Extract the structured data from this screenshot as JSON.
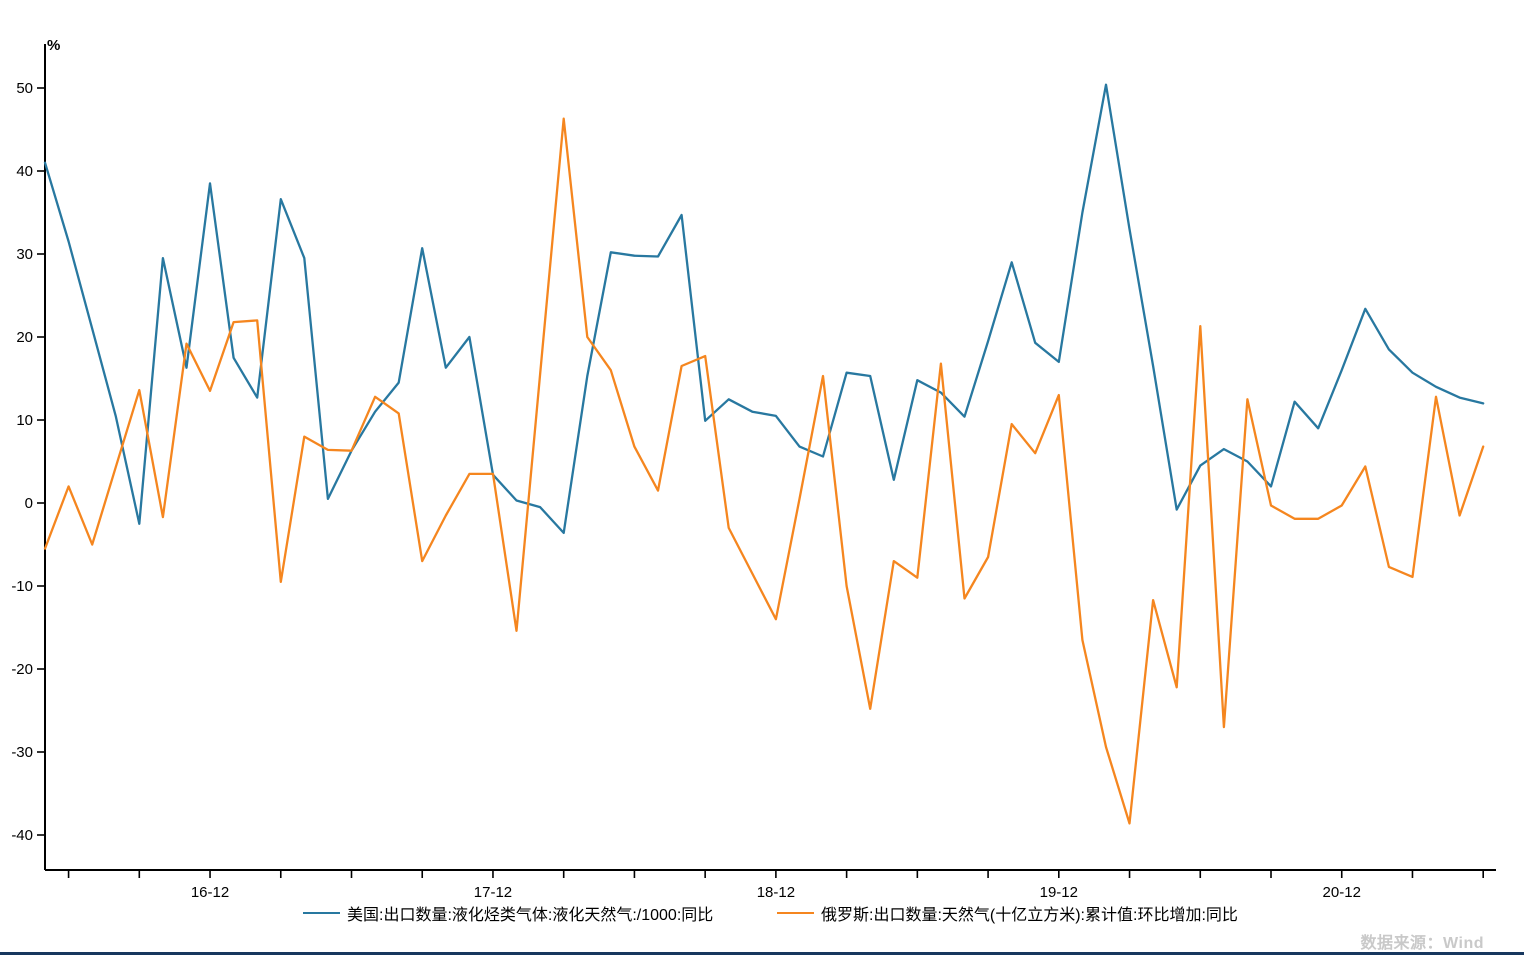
{
  "unit_label": "%",
  "source_note": "数据来源：Wind",
  "colors": {
    "us_line": "#2878A0",
    "ru_line": "#F5861F",
    "axis": "#000000",
    "tick_label": "#000000",
    "source_text": "#C9C9C9",
    "bottom_border": "#17375E"
  },
  "legend": {
    "us_label": "美国:出口数量:液化烃类气体:液化天然气:/1000:同比",
    "ru_label": "俄罗斯:出口数量:天然气(十亿立方米):累计值:环比增加:同比"
  },
  "chart_data": {
    "type": "line",
    "title": "",
    "xlabel": "",
    "ylabel": "%",
    "ylim": [
      -45,
      55
    ],
    "grid": false,
    "legend_position": "bottom",
    "y_ticks": [
      50,
      40,
      30,
      20,
      10,
      0,
      -10,
      -20,
      -30,
      -40
    ],
    "x_tick_every_months": 3,
    "x_major_ticks": [
      {
        "month_index": 7,
        "label": "16-12"
      },
      {
        "month_index": 19,
        "label": "17-12"
      },
      {
        "month_index": 31,
        "label": "18-12"
      },
      {
        "month_index": 43,
        "label": "19-12"
      },
      {
        "month_index": 55,
        "label": "20-12"
      }
    ],
    "x": [
      "2016-05",
      "2016-06",
      "2016-07",
      "2016-08",
      "2016-09",
      "2016-10",
      "2016-11",
      "2016-12",
      "2017-01",
      "2017-02",
      "2017-03",
      "2017-04",
      "2017-05",
      "2017-06",
      "2017-07",
      "2017-08",
      "2017-09",
      "2017-10",
      "2017-11",
      "2017-12",
      "2018-01",
      "2018-02",
      "2018-03",
      "2018-04",
      "2018-05",
      "2018-06",
      "2018-07",
      "2018-08",
      "2018-09",
      "2018-10",
      "2018-11",
      "2018-12",
      "2019-01",
      "2019-02",
      "2019-03",
      "2019-04",
      "2019-05",
      "2019-06",
      "2019-07",
      "2019-08",
      "2019-09",
      "2019-10",
      "2019-11",
      "2019-12",
      "2020-01",
      "2020-02",
      "2020-03",
      "2020-04",
      "2020-05",
      "2020-06",
      "2020-07",
      "2020-08",
      "2020-09",
      "2020-10",
      "2020-11",
      "2020-12",
      "2021-01",
      "2021-02",
      "2021-03",
      "2021-04",
      "2021-05",
      "2021-06"
    ],
    "series": [
      {
        "name": "美国:出口数量:液化烃类气体:液化天然气:/1000:同比",
        "color": "#2878A0",
        "values": [
          41,
          31.5,
          21,
          10.5,
          -2.5,
          29.5,
          16.3,
          38.5,
          17.5,
          12.7,
          36.6,
          29.5,
          0.5,
          6.3,
          11,
          14.5,
          30.7,
          16.3,
          20,
          3.4,
          0.3,
          -0.5,
          -3.6,
          15.3,
          30.2,
          29.8,
          29.7,
          34.7,
          9.9,
          12.5,
          11,
          10.5,
          6.8,
          5.6,
          15.7,
          15.3,
          2.8,
          14.8,
          13.3,
          10.4,
          19.5,
          29,
          19.3,
          17,
          35,
          50.4,
          33,
          16.5,
          -0.8,
          4.5,
          6.5,
          5,
          2,
          12.2,
          9,
          16,
          23.4,
          18.5,
          15.7,
          14,
          12.7,
          12
        ]
      },
      {
        "name": "俄罗斯:出口数量:天然气(十亿立方米):累计值:环比增加:同比",
        "color": "#F5861F",
        "values": [
          -5.5,
          2,
          -5,
          4.3,
          13.6,
          -1.7,
          19.2,
          13.5,
          21.8,
          22,
          -9.5,
          8,
          6.4,
          6.3,
          12.8,
          10.8,
          -7,
          -1.5,
          3.5,
          3.5,
          -15.4,
          15.5,
          46.3,
          20,
          16,
          6.8,
          1.5,
          16.5,
          17.7,
          -3,
          -8.5,
          -14,
          0.5,
          15.3,
          -10,
          -24.8,
          -7,
          -9,
          16.8,
          -11.5,
          -6.5,
          9.5,
          6,
          13,
          -16.5,
          -29.4,
          -38.6,
          -11.7,
          -22.2,
          21.3,
          -27,
          12.5,
          -0.3,
          -1.9,
          -1.9,
          -0.3,
          4.4,
          -7.7,
          -8.9,
          12.8,
          -1.5,
          6.8
        ]
      }
    ]
  }
}
